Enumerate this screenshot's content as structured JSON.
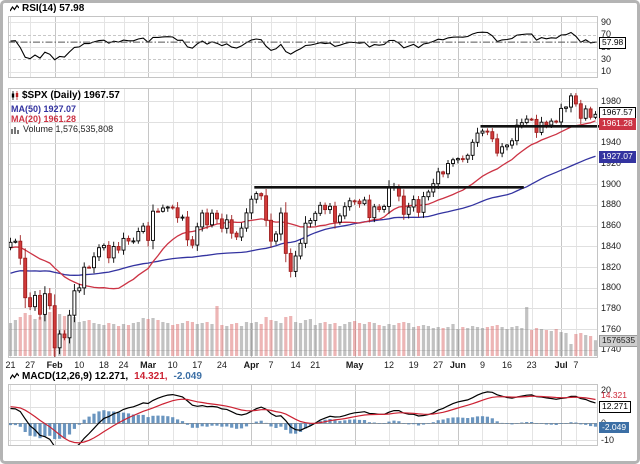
{
  "colors": {
    "up": "#000000",
    "down": "#d23b3b",
    "down_border": "#9e1f1f",
    "ma20": "#cc3344",
    "ma50": "#3333a0",
    "rsi_line": "#000000",
    "macd_line": "#000000",
    "signal_line": "#cc2233",
    "histogram": "rgba(80,130,180,0.85)",
    "histogram_dark": "#3c6fa5",
    "volume_up": "rgba(120,120,120,0.45)",
    "volume_down": "rgba(214,92,92,0.45)",
    "trendline": "#111111"
  },
  "rsi_panel": {
    "title": "RSI(14) 57.98",
    "ticks": [
      90,
      70,
      50,
      30,
      10
    ],
    "last_label": "57.98"
  },
  "main_panel": {
    "title": "$SPX (Daily) 1967.57",
    "legend_ma50": "MA(50) 1927.07",
    "legend_ma20": "MA(20) 1961.28",
    "legend_volume": "Volume 1,576,535,808",
    "ticks": [
      1980,
      1960,
      1940,
      1920,
      1900,
      1880,
      1860,
      1840,
      1820,
      1800,
      1780,
      1760,
      1740
    ],
    "labels": {
      "close": "1967.57",
      "ma20": "1961.28",
      "ma50": "1927.07",
      "volume": "1576535"
    }
  },
  "macd_panel": {
    "title_main": "MACD(12,26,9) 12.271,",
    "title_signal": "14.321,",
    "title_hist": "-2.049",
    "ticks": [
      20,
      10,
      0,
      -10
    ],
    "labels": {
      "macd": "12.271",
      "signal": "14.321",
      "hist": "-2.049"
    }
  },
  "x_axis": {
    "ticks": [
      {
        "label": "21",
        "index": 0,
        "month": false
      },
      {
        "label": "27",
        "index": 4,
        "month": false
      },
      {
        "label": "Feb",
        "index": 9,
        "month": true
      },
      {
        "label": "10",
        "index": 14,
        "month": false
      },
      {
        "label": "18",
        "index": 19,
        "month": false
      },
      {
        "label": "24",
        "index": 23,
        "month": false
      },
      {
        "label": "Mar",
        "index": 28,
        "month": true
      },
      {
        "label": "10",
        "index": 33,
        "month": false
      },
      {
        "label": "17",
        "index": 38,
        "month": false
      },
      {
        "label": "24",
        "index": 43,
        "month": false
      },
      {
        "label": "Apr",
        "index": 49,
        "month": true
      },
      {
        "label": "7",
        "index": 53,
        "month": false
      },
      {
        "label": "14",
        "index": 58,
        "month": false
      },
      {
        "label": "21",
        "index": 62,
        "month": false
      },
      {
        "label": "May",
        "index": 70,
        "month": true
      },
      {
        "label": "12",
        "index": 77,
        "month": false
      },
      {
        "label": "19",
        "index": 82,
        "month": false
      },
      {
        "label": "27",
        "index": 87,
        "month": false
      },
      {
        "label": "Jun",
        "index": 91,
        "month": true
      },
      {
        "label": "9",
        "index": 96,
        "month": false
      },
      {
        "label": "16",
        "index": 101,
        "month": false
      },
      {
        "label": "23",
        "index": 106,
        "month": false
      },
      {
        "label": "Jul",
        "index": 112,
        "month": true
      },
      {
        "label": "7",
        "index": 115,
        "month": false
      }
    ]
  },
  "chart_data": {
    "type": "candlestick",
    "symbol": "$SPX",
    "timeframe": "Daily",
    "indicators": {
      "rsi_period": 14,
      "macd_params": [
        12,
        26,
        9
      ],
      "overlays": [
        "MA(50)",
        "MA(20)",
        "Volume"
      ]
    },
    "price_axis": {
      "min": 1740,
      "max": 1980,
      "step": 20
    },
    "volume_axis_max": 5200,
    "pre_closes": [
      1767,
      1771,
      1782,
      1788,
      1791,
      1791,
      1788,
      1781,
      1795,
      1802,
      1803,
      1807,
      1805,
      1801,
      1796,
      1795,
      1805,
      1808,
      1811,
      1806,
      1802,
      1782,
      1776,
      1781,
      1775,
      1786,
      1810,
      1809,
      1818,
      1827,
      1833,
      1828,
      1834,
      1842,
      1841,
      1848,
      1831,
      1832,
      1826,
      1838,
      1837,
      1839,
      1831,
      1842,
      1842,
      1843,
      1838,
      1848,
      1846,
      1839
    ],
    "closes": [
      1843.8,
      1844.9,
      1828.5,
      1790.3,
      1781.6,
      1792.5,
      1774.2,
      1794.2,
      1782.6,
      1741.9,
      1755.2,
      1751.6,
      1773.4,
      1797.0,
      1799.8,
      1819.8,
      1819.3,
      1829.8,
      1838.6,
      1840.8,
      1828.8,
      1839.8,
      1836.3,
      1847.6,
      1845.1,
      1845.2,
      1854.3,
      1859.5,
      1845.7,
      1873.9,
      1873.8,
      1877.0,
      1878.0,
      1877.2,
      1867.6,
      1868.2,
      1846.3,
      1841.1,
      1858.8,
      1872.2,
      1860.8,
      1872.0,
      1866.5,
      1857.4,
      1865.6,
      1852.6,
      1849.0,
      1857.6,
      1872.3,
      1885.5,
      1890.9,
      1888.8,
      1865.1,
      1845.0,
      1851.9,
      1872.2,
      1833.1,
      1815.7,
      1830.6,
      1842.9,
      1862.3,
      1864.9,
      1871.9,
      1879.6,
      1875.4,
      1878.6,
      1863.4,
      1869.4,
      1878.3,
      1884.0,
      1883.7,
      1881.1,
      1884.7,
      1867.7,
      1878.2,
      1875.6,
      1878.5,
      1896.7,
      1897.5,
      1888.5,
      1870.9,
      1877.9,
      1885.1,
      1872.8,
      1888.0,
      1892.5,
      1900.5,
      1911.9,
      1910.0,
      1920.0,
      1923.6,
      1924.8,
      1924.2,
      1927.9,
      1940.5,
      1949.4,
      1951.3,
      1950.8,
      1943.9,
      1930.1,
      1936.2,
      1937.8,
      1942.0,
      1957.0,
      1959.5,
      1962.9,
      1962.6,
      1950.0,
      1959.9,
      1957.2,
      1961.0,
      1960.2,
      1973.3,
      1974.6,
      1985.4,
      1977.7,
      1963.7,
      1972.8,
      1964.7,
      1967.6
    ],
    "volumes_millions": [
      3300,
      3600,
      3900,
      4300,
      4100,
      3700,
      3900,
      4100,
      4400,
      4500,
      4200,
      4000,
      3800,
      3900,
      3400,
      3500,
      3600,
      3300,
      3200,
      3100,
      3300,
      3200,
      3000,
      3200,
      3100,
      3300,
      3400,
      3800,
      3700,
      3800,
      3600,
      3400,
      3300,
      3100,
      3200,
      3300,
      3500,
      3400,
      3200,
      3300,
      3400,
      3200,
      5000,
      3100,
      3000,
      3200,
      3300,
      3000,
      3400,
      3300,
      3400,
      3200,
      3900,
      3600,
      3500,
      3300,
      3900,
      4000,
      3400,
      3300,
      3600,
      3700,
      3100,
      3300,
      3400,
      3200,
      3300,
      3000,
      3200,
      3400,
      3500,
      3300,
      3200,
      3400,
      3300,
      3100,
      3000,
      3200,
      3100,
      3300,
      3400,
      3300,
      2900,
      3000,
      3100,
      3000,
      2800,
      2900,
      2800,
      2900,
      3200,
      2700,
      2900,
      2800,
      3000,
      2900,
      2800,
      2900,
      3000,
      3100,
      2900,
      2700,
      2900,
      3000,
      2800,
      4900,
      2600,
      2800,
      2700,
      2600,
      2500,
      2700,
      2400,
      2300,
      1200,
      2200,
      2300,
      2100,
      2000,
      1576
    ],
    "trendlines": [
      {
        "price": 1897,
        "from": 50,
        "to": 104,
        "extend_right": false
      },
      {
        "price": 1956,
        "from": 96,
        "to": 119,
        "extend_right": true
      }
    ],
    "last": {
      "close": 1967.57,
      "ma20": 1961.28,
      "ma50": 1927.07,
      "rsi": 57.98,
      "macd": 12.271,
      "signal": 14.321,
      "hist": -2.049,
      "volume": 1576535808
    }
  }
}
